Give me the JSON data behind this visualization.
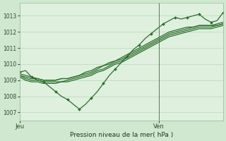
{
  "background_color": "#cfe8cf",
  "plot_bg_color": "#dff0df",
  "grid_color": "#b8d8b8",
  "line_color": "#2d6e2d",
  "marker_color": "#2d6e2d",
  "title": "Pression niveau de la mer( hPa )",
  "ylabel_ticks": [
    1007,
    1008,
    1009,
    1010,
    1011,
    1012,
    1013
  ],
  "ylim": [
    1006.5,
    1013.8
  ],
  "xlim": [
    0,
    35
  ],
  "xtick_positions": [
    0,
    24
  ],
  "xtick_labels": [
    "Jeu",
    "Ven"
  ],
  "ven_x": 24,
  "series": [
    [
      1009.5,
      1009.6,
      1009.2,
      1009.0,
      1008.9,
      1008.6,
      1008.3,
      1008.0,
      1007.8,
      1007.5,
      1007.2,
      1007.5,
      1007.9,
      1008.3,
      1008.8,
      1009.3,
      1009.7,
      1010.1,
      1010.5,
      1010.9,
      1011.2,
      1011.6,
      1011.9,
      1012.2,
      1012.5,
      1012.7,
      1012.9,
      1012.8,
      1012.9,
      1013.0,
      1013.1,
      1012.8,
      1012.6,
      1012.7,
      1013.2
    ],
    [
      1009.4,
      1009.3,
      1009.2,
      1009.1,
      1009.0,
      1009.0,
      1009.0,
      1009.1,
      1009.1,
      1009.2,
      1009.3,
      1009.5,
      1009.6,
      1009.8,
      1009.9,
      1010.1,
      1010.2,
      1010.4,
      1010.6,
      1010.8,
      1011.0,
      1011.2,
      1011.4,
      1011.6,
      1011.8,
      1012.0,
      1012.1,
      1012.2,
      1012.3,
      1012.3,
      1012.4,
      1012.4,
      1012.4,
      1012.5,
      1012.6
    ],
    [
      1009.3,
      1009.2,
      1009.1,
      1009.1,
      1009.0,
      1009.0,
      1009.0,
      1009.1,
      1009.1,
      1009.2,
      1009.3,
      1009.4,
      1009.5,
      1009.7,
      1009.9,
      1010.0,
      1010.2,
      1010.3,
      1010.5,
      1010.7,
      1010.9,
      1011.1,
      1011.3,
      1011.5,
      1011.7,
      1011.9,
      1012.0,
      1012.1,
      1012.2,
      1012.3,
      1012.4,
      1012.4,
      1012.4,
      1012.4,
      1012.5
    ],
    [
      1009.3,
      1009.1,
      1009.0,
      1009.0,
      1008.9,
      1008.9,
      1008.9,
      1008.9,
      1009.0,
      1009.1,
      1009.2,
      1009.3,
      1009.4,
      1009.6,
      1009.7,
      1009.9,
      1010.1,
      1010.2,
      1010.4,
      1010.6,
      1010.8,
      1011.0,
      1011.2,
      1011.4,
      1011.6,
      1011.8,
      1011.9,
      1012.0,
      1012.1,
      1012.2,
      1012.3,
      1012.3,
      1012.3,
      1012.4,
      1012.5
    ],
    [
      1009.2,
      1009.0,
      1008.9,
      1008.9,
      1008.8,
      1008.8,
      1008.8,
      1008.9,
      1008.9,
      1009.0,
      1009.1,
      1009.2,
      1009.3,
      1009.5,
      1009.6,
      1009.8,
      1010.0,
      1010.1,
      1010.3,
      1010.5,
      1010.7,
      1010.9,
      1011.1,
      1011.3,
      1011.5,
      1011.7,
      1011.8,
      1011.9,
      1012.0,
      1012.1,
      1012.2,
      1012.2,
      1012.2,
      1012.3,
      1012.4
    ]
  ],
  "marker_series": 0,
  "figsize": [
    3.2,
    2.0
  ],
  "dpi": 100
}
